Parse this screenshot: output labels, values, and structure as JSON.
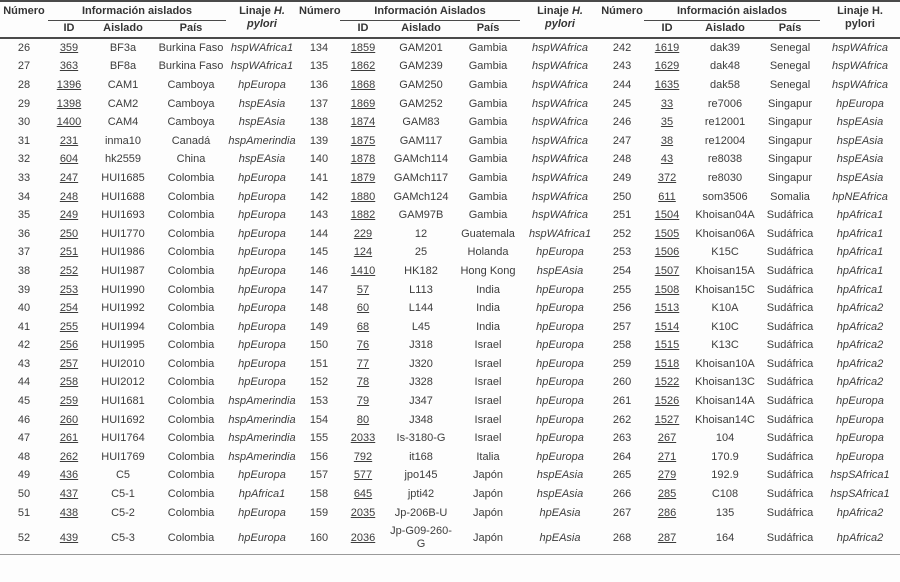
{
  "colors": {
    "background": "#fdfdfd",
    "text": "#3d3d3d",
    "rule": "#4a4a4a"
  },
  "table": {
    "column_groups": [
      {
        "numero_header": "Número",
        "info_header": "Información aislados",
        "id_header": "ID",
        "aislado_header": "Aislado",
        "pais_header": "País",
        "linaje_prefix": "Linaje",
        "linaje_species": "H.",
        "linaje_line2": "pylori",
        "linaje_italic": true
      },
      {
        "numero_header": "Número",
        "info_header": "Información Aislados",
        "id_header": "ID",
        "aislado_header": "Aislado",
        "pais_header": "País",
        "linaje_prefix": "Linaje",
        "linaje_species": "H.",
        "linaje_line2": "pylori",
        "linaje_italic": true
      },
      {
        "numero_header": "Número",
        "info_header": "Información aislados",
        "id_header": "ID",
        "aislado_header": "Aislado",
        "pais_header": "País",
        "linaje_prefix": "Linaje",
        "linaje_species": "H.",
        "linaje_line2": "pylori",
        "linaje_italic": false
      }
    ],
    "rows": [
      [
        {
          "numero": "26",
          "id": "359",
          "aislado": "BF3a",
          "pais": "Burkina Faso",
          "linaje": "hspWAfrica1"
        },
        {
          "numero": "134",
          "id": "1859",
          "aislado": "GAM201",
          "pais": "Gambia",
          "linaje": "hspWAfrica"
        },
        {
          "numero": "242",
          "id": "1619",
          "aislado": "dak39",
          "pais": "Senegal",
          "linaje": "hspWAfrica"
        }
      ],
      [
        {
          "numero": "27",
          "id": "363",
          "aislado": "BF8a",
          "pais": "Burkina Faso",
          "linaje": "hspWAfrica1"
        },
        {
          "numero": "135",
          "id": "1862",
          "aislado": "GAM239",
          "pais": "Gambia",
          "linaje": "hspWAfrica"
        },
        {
          "numero": "243",
          "id": "1629",
          "aislado": "dak48",
          "pais": "Senegal",
          "linaje": "hspWAfrica"
        }
      ],
      [
        {
          "numero": "28",
          "id": "1396",
          "aislado": "CAM1",
          "pais": "Camboya",
          "linaje": "hpEuropa"
        },
        {
          "numero": "136",
          "id": "1868",
          "aislado": "GAM250",
          "pais": "Gambia",
          "linaje": "hspWAfrica"
        },
        {
          "numero": "244",
          "id": "1635",
          "aislado": "dak58",
          "pais": "Senegal",
          "linaje": "hspWAfrica"
        }
      ],
      [
        {
          "numero": "29",
          "id": "1398",
          "aislado": "CAM2",
          "pais": "Camboya",
          "linaje": "hspEAsia"
        },
        {
          "numero": "137",
          "id": "1869",
          "aislado": "GAM252",
          "pais": "Gambia",
          "linaje": "hspWAfrica"
        },
        {
          "numero": "245",
          "id": "33",
          "aislado": "re7006",
          "pais": "Singapur",
          "linaje": "hpEuropa"
        }
      ],
      [
        {
          "numero": "30",
          "id": "1400",
          "aislado": "CAM4",
          "pais": "Camboya",
          "linaje": "hspEAsia"
        },
        {
          "numero": "138",
          "id": "1874",
          "aislado": "GAM83",
          "pais": "Gambia",
          "linaje": "hspWAfrica"
        },
        {
          "numero": "246",
          "id": "35",
          "aislado": "re12001",
          "pais": "Singapur",
          "linaje": "hspEAsia"
        }
      ],
      [
        {
          "numero": "31",
          "id": "231",
          "aislado": "inma10",
          "pais": "Canadá",
          "linaje": "hspAmerindia"
        },
        {
          "numero": "139",
          "id": "1875",
          "aislado": "GAM117",
          "pais": "Gambia",
          "linaje": "hspWAfrica"
        },
        {
          "numero": "247",
          "id": "38",
          "aislado": "re12004",
          "pais": "Singapur",
          "linaje": "hspEAsia"
        }
      ],
      [
        {
          "numero": "32",
          "id": "604",
          "aislado": "hk2559",
          "pais": "China",
          "linaje": "hspEAsia"
        },
        {
          "numero": "140",
          "id": "1878",
          "aislado": "GAMch114",
          "pais": "Gambia",
          "linaje": "hspWAfrica"
        },
        {
          "numero": "248",
          "id": "43",
          "aislado": "re8038",
          "pais": "Singapur",
          "linaje": "hspEAsia"
        }
      ],
      [
        {
          "numero": "33",
          "id": "247",
          "aislado": "HUI1685",
          "pais": "Colombia",
          "linaje": "hpEuropa"
        },
        {
          "numero": "141",
          "id": "1879",
          "aislado": "GAMch117",
          "pais": "Gambia",
          "linaje": "hspWAfrica"
        },
        {
          "numero": "249",
          "id": "372",
          "aislado": "re8030",
          "pais": "Singapur",
          "linaje": "hspEAsia"
        }
      ],
      [
        {
          "numero": "34",
          "id": "248",
          "aislado": "HUI1688",
          "pais": "Colombia",
          "linaje": "hpEuropa"
        },
        {
          "numero": "142",
          "id": "1880",
          "aislado": "GAMch124",
          "pais": "Gambia",
          "linaje": "hspWAfrica"
        },
        {
          "numero": "250",
          "id": "611",
          "aislado": "som3506",
          "pais": "Somalia",
          "linaje": "hpNEAfrica"
        }
      ],
      [
        {
          "numero": "35",
          "id": "249",
          "aislado": "HUI1693",
          "pais": "Colombia",
          "linaje": "hpEuropa"
        },
        {
          "numero": "143",
          "id": "1882",
          "aislado": "GAM97B",
          "pais": "Gambia",
          "linaje": "hspWAfrica"
        },
        {
          "numero": "251",
          "id": "1504",
          "aislado": "Khoisan04A",
          "pais": "Sudáfrica",
          "linaje": "hpAfrica1"
        }
      ],
      [
        {
          "numero": "36",
          "id": "250",
          "aislado": "HUI1770",
          "pais": "Colombia",
          "linaje": "hpEuropa"
        },
        {
          "numero": "144",
          "id": "229",
          "aislado": "12",
          "pais": "Guatemala",
          "linaje": "hspWAfrica1"
        },
        {
          "numero": "252",
          "id": "1505",
          "aislado": "Khoisan06A",
          "pais": "Sudáfrica",
          "linaje": "hpAfrica1"
        }
      ],
      [
        {
          "numero": "37",
          "id": "251",
          "aislado": "HUI1986",
          "pais": "Colombia",
          "linaje": "hpEuropa"
        },
        {
          "numero": "145",
          "id": "124",
          "aislado": "25",
          "pais": "Holanda",
          "linaje": "hpEuropa"
        },
        {
          "numero": "253",
          "id": "1506",
          "aislado": "K15C",
          "pais": "Sudáfrica",
          "linaje": "hpAfrica1"
        }
      ],
      [
        {
          "numero": "38",
          "id": "252",
          "aislado": "HUI1987",
          "pais": "Colombia",
          "linaje": "hpEuropa"
        },
        {
          "numero": "146",
          "id": "1410",
          "aislado": "HK182",
          "pais": "Hong Kong",
          "linaje": "hspEAsia"
        },
        {
          "numero": "254",
          "id": "1507",
          "aislado": "Khoisan15A",
          "pais": "Sudáfrica",
          "linaje": "hpAfrica1"
        }
      ],
      [
        {
          "numero": "39",
          "id": "253",
          "aislado": "HUI1990",
          "pais": "Colombia",
          "linaje": "hpEuropa"
        },
        {
          "numero": "147",
          "id": "57",
          "aislado": "L113",
          "pais": "India",
          "linaje": "hpEuropa"
        },
        {
          "numero": "255",
          "id": "1508",
          "aislado": "Khoisan15C",
          "pais": "Sudáfrica",
          "linaje": "hpAfrica1"
        }
      ],
      [
        {
          "numero": "40",
          "id": "254",
          "aislado": "HUI1992",
          "pais": "Colombia",
          "linaje": "hpEuropa"
        },
        {
          "numero": "148",
          "id": "60",
          "aislado": "L144",
          "pais": "India",
          "linaje": "hpEuropa"
        },
        {
          "numero": "256",
          "id": "1513",
          "aislado": "K10A",
          "pais": "Sudáfrica",
          "linaje": "hpAfrica2"
        }
      ],
      [
        {
          "numero": "41",
          "id": "255",
          "aislado": "HUI1994",
          "pais": "Colombia",
          "linaje": "hpEuropa"
        },
        {
          "numero": "149",
          "id": "68",
          "aislado": "L45",
          "pais": "India",
          "linaje": "hpEuropa"
        },
        {
          "numero": "257",
          "id": "1514",
          "aislado": "K10C",
          "pais": "Sudáfrica",
          "linaje": "hpAfrica2"
        }
      ],
      [
        {
          "numero": "42",
          "id": "256",
          "aislado": "HUI1995",
          "pais": "Colombia",
          "linaje": "hpEuropa"
        },
        {
          "numero": "150",
          "id": "76",
          "aislado": "J318",
          "pais": "Israel",
          "linaje": "hpEuropa"
        },
        {
          "numero": "258",
          "id": "1515",
          "aislado": "K13C",
          "pais": "Sudáfrica",
          "linaje": "hpAfrica2"
        }
      ],
      [
        {
          "numero": "43",
          "id": "257",
          "aislado": "HUI2010",
          "pais": "Colombia",
          "linaje": "hpEuropa"
        },
        {
          "numero": "151",
          "id": "77",
          "aislado": "J320",
          "pais": "Israel",
          "linaje": "hpEuropa"
        },
        {
          "numero": "259",
          "id": "1518",
          "aislado": "Khoisan10A",
          "pais": "Sudáfrica",
          "linaje": "hpAfrica2"
        }
      ],
      [
        {
          "numero": "44",
          "id": "258",
          "aislado": "HUI2012",
          "pais": "Colombia",
          "linaje": "hpEuropa"
        },
        {
          "numero": "152",
          "id": "78",
          "aislado": "J328",
          "pais": "Israel",
          "linaje": "hpEuropa"
        },
        {
          "numero": "260",
          "id": "1522",
          "aislado": "Khoisan13C",
          "pais": "Sudáfrica",
          "linaje": "hpAfrica2"
        }
      ],
      [
        {
          "numero": "45",
          "id": "259",
          "aislado": "HUI1681",
          "pais": "Colombia",
          "linaje": "hspAmerindia"
        },
        {
          "numero": "153",
          "id": "79",
          "aislado": "J347",
          "pais": "Israel",
          "linaje": "hpEuropa"
        },
        {
          "numero": "261",
          "id": "1526",
          "aislado": "Khoisan14A",
          "pais": "Sudáfrica",
          "linaje": "hpEuropa"
        }
      ],
      [
        {
          "numero": "46",
          "id": "260",
          "aislado": "HUI1692",
          "pais": "Colombia",
          "linaje": "hspAmerindia"
        },
        {
          "numero": "154",
          "id": "80",
          "aislado": "J348",
          "pais": "Israel",
          "linaje": "hpEuropa"
        },
        {
          "numero": "262",
          "id": "1527",
          "aislado": "Khoisan14C",
          "pais": "Sudáfrica",
          "linaje": "hpEuropa"
        }
      ],
      [
        {
          "numero": "47",
          "id": "261",
          "aislado": "HUI1764",
          "pais": "Colombia",
          "linaje": "hspAmerindia"
        },
        {
          "numero": "155",
          "id": "2033",
          "aislado": "Is-3180-G",
          "pais": "Israel",
          "linaje": "hpEuropa"
        },
        {
          "numero": "263",
          "id": "267",
          "aislado": "104",
          "pais": "Sudáfrica",
          "linaje": "hpEuropa"
        }
      ],
      [
        {
          "numero": "48",
          "id": "262",
          "aislado": "HUI1769",
          "pais": "Colombia",
          "linaje": "hspAmerindia"
        },
        {
          "numero": "156",
          "id": "792",
          "aislado": "it168",
          "pais": "Italia",
          "linaje": "hpEuropa"
        },
        {
          "numero": "264",
          "id": "271",
          "aislado": "170.9",
          "pais": "Sudáfrica",
          "linaje": "hpEuropa"
        }
      ],
      [
        {
          "numero": "49",
          "id": "436",
          "aislado": "C5",
          "pais": "Colombia",
          "linaje": "hpEuropa"
        },
        {
          "numero": "157",
          "id": "577",
          "aislado": "jpo145",
          "pais": "Japón",
          "linaje": "hspEAsia"
        },
        {
          "numero": "265",
          "id": "279",
          "aislado": "192.9",
          "pais": "Sudáfrica",
          "linaje": "hspSAfrica1"
        }
      ],
      [
        {
          "numero": "50",
          "id": "437",
          "aislado": "C5-1",
          "pais": "Colombia",
          "linaje": "hpAfrica1"
        },
        {
          "numero": "158",
          "id": "645",
          "aislado": "jpti42",
          "pais": "Japón",
          "linaje": "hspEAsia"
        },
        {
          "numero": "266",
          "id": "285",
          "aislado": "C108",
          "pais": "Sudáfrica",
          "linaje": "hspSAfrica1"
        }
      ],
      [
        {
          "numero": "51",
          "id": "438",
          "aislado": "C5-2",
          "pais": "Colombia",
          "linaje": "hpEuropa"
        },
        {
          "numero": "159",
          "id": "2035",
          "aislado": "Jp-206B-U",
          "pais": "Japón",
          "linaje": "hpEAsia"
        },
        {
          "numero": "267",
          "id": "286",
          "aislado": "135",
          "pais": "Sudáfrica",
          "linaje": "hpAfrica2"
        }
      ],
      [
        {
          "numero": "52",
          "id": "439",
          "aislado": "C5-3",
          "pais": "Colombia",
          "linaje": "hpEuropa"
        },
        {
          "numero": "160",
          "id": "2036",
          "aislado": "Jp-G09-260-G",
          "pais": "Japón",
          "linaje": "hpEAsia"
        },
        {
          "numero": "268",
          "id": "287",
          "aislado": "164",
          "pais": "Sudáfrica",
          "linaje": "hpAfrica2"
        }
      ]
    ]
  }
}
